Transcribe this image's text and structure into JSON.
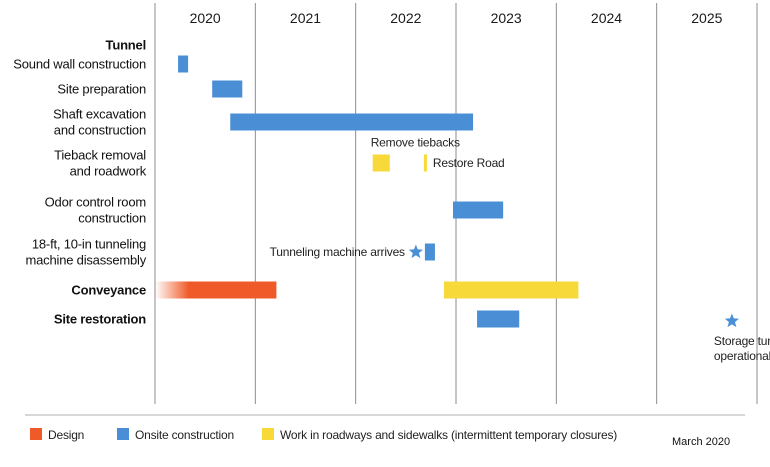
{
  "chart_data": {
    "type": "gantt",
    "x_unit": "year",
    "xlim": [
      2019.5,
      2025.5
    ],
    "years": [
      "2020",
      "2021",
      "2022",
      "2023",
      "2024",
      "2025"
    ],
    "colors": {
      "design": "#f05a28",
      "onsite": "#4a8fd6",
      "roadway": "#f7d93a",
      "gridline": "#8c8c8c",
      "star": "#4a8fd6"
    },
    "rows": [
      {
        "name": "row-tunnel-header",
        "lines": [
          "Tunnel"
        ],
        "bold": true
      },
      {
        "name": "row-sound-wall",
        "lines": [
          "Sound wall construction"
        ],
        "bold": false
      },
      {
        "name": "row-site-prep",
        "lines": [
          "Site preparation"
        ],
        "bold": false
      },
      {
        "name": "row-shaft",
        "lines": [
          "Shaft excavation",
          "and construction"
        ],
        "bold": false
      },
      {
        "name": "row-tieback",
        "lines": [
          "Tieback removal",
          "and roadwork"
        ],
        "bold": false
      },
      {
        "name": "row-odor",
        "lines": [
          "Odor control room",
          "construction"
        ],
        "bold": false
      },
      {
        "name": "row-tunneling",
        "lines": [
          "18-ft, 10-in tunneling",
          "machine disassembly"
        ],
        "bold": false
      },
      {
        "name": "row-conveyance",
        "lines": [
          "Conveyance"
        ],
        "bold": true
      },
      {
        "name": "row-site-restoration",
        "lines": [
          "Site restoration"
        ],
        "bold": true
      }
    ],
    "bars": [
      {
        "row": 1,
        "start": 2019.73,
        "end": 2019.83,
        "category": "onsite"
      },
      {
        "row": 2,
        "start": 2020.07,
        "end": 2020.37,
        "category": "onsite"
      },
      {
        "row": 3,
        "start": 2020.25,
        "end": 2022.67,
        "category": "onsite"
      },
      {
        "row": 4,
        "start": 2021.67,
        "end": 2021.84,
        "category": "roadway",
        "label": "Remove tiebacks",
        "label_pos": "above"
      },
      {
        "row": 4,
        "start": 2022.18,
        "end": 2022.21,
        "category": "roadway",
        "label": "Restore Road",
        "label_pos": "right"
      },
      {
        "row": 5,
        "start": 2022.47,
        "end": 2022.97,
        "category": "onsite"
      },
      {
        "row": 6,
        "start": 2022.19,
        "end": 2022.29,
        "category": "onsite"
      },
      {
        "row": 7,
        "start": 2019.5,
        "end": 2020.71,
        "category": "design",
        "fade_in": true
      },
      {
        "row": 7,
        "start": 2022.38,
        "end": 2023.72,
        "category": "roadway"
      },
      {
        "row": 8,
        "start": 2022.71,
        "end": 2023.13,
        "category": "onsite"
      }
    ],
    "milestones": [
      {
        "row": 6,
        "x": 2022.1,
        "label": "Tunneling machine arrives",
        "label_pos": "left"
      },
      {
        "row": 8,
        "x": 2025.25,
        "label_lines": [
          "Storage tunnel",
          "operational"
        ],
        "label_pos": "below"
      }
    ],
    "legend": [
      {
        "key": "design",
        "label": "Design"
      },
      {
        "key": "onsite",
        "label": "Onsite construction"
      },
      {
        "key": "roadway",
        "label": "Work in roadways and sidewalks (intermittent temporary closures)"
      }
    ],
    "note": "March 2020"
  }
}
